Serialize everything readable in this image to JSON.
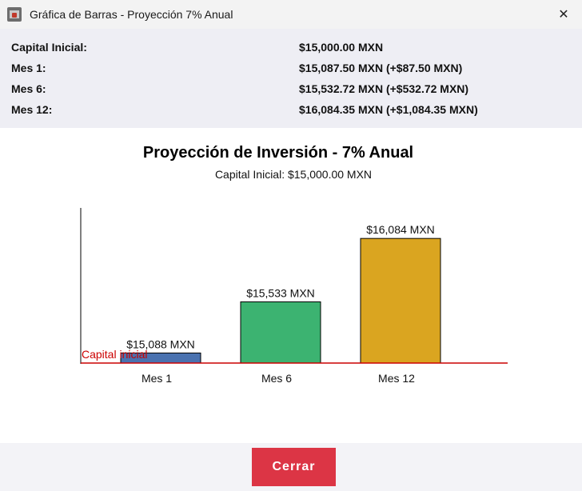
{
  "window": {
    "title": "Gráfica de Barras - Proyección 7% Anual",
    "close_glyph": "✕"
  },
  "summary": {
    "rows": [
      {
        "label": "Capital Inicial:",
        "value": "$15,000.00 MXN"
      },
      {
        "label": "Mes 1:",
        "value": "$15,087.50 MXN (+$87.50 MXN)"
      },
      {
        "label": "Mes 6:",
        "value": "$15,532.72 MXN (+$532.72 MXN)"
      },
      {
        "label": "Mes 12:",
        "value": "$16,084.35 MXN (+$1,084.35 MXN)"
      }
    ]
  },
  "chart_data": {
    "type": "bar",
    "title": "Proyección de Inversión - 7% Anual",
    "subtitle": "Capital Inicial: $15,000.00 MXN",
    "categories": [
      "Mes 1",
      "Mes 6",
      "Mes 12"
    ],
    "values": [
      15087.5,
      15532.72,
      16084.35
    ],
    "data_labels": [
      "$15,088 MXN",
      "$15,533 MXN",
      "$16,084 MXN"
    ],
    "colors": [
      "#4a72b0",
      "#3cb371",
      "#daa520"
    ],
    "baseline": {
      "value": 15000,
      "label": "Capital inicial",
      "color": "#cc0000"
    },
    "ylim": [
      15000,
      16350
    ],
    "grid": false
  },
  "footer": {
    "close_label": "Cerrar",
    "close_color": "#dc3545"
  }
}
